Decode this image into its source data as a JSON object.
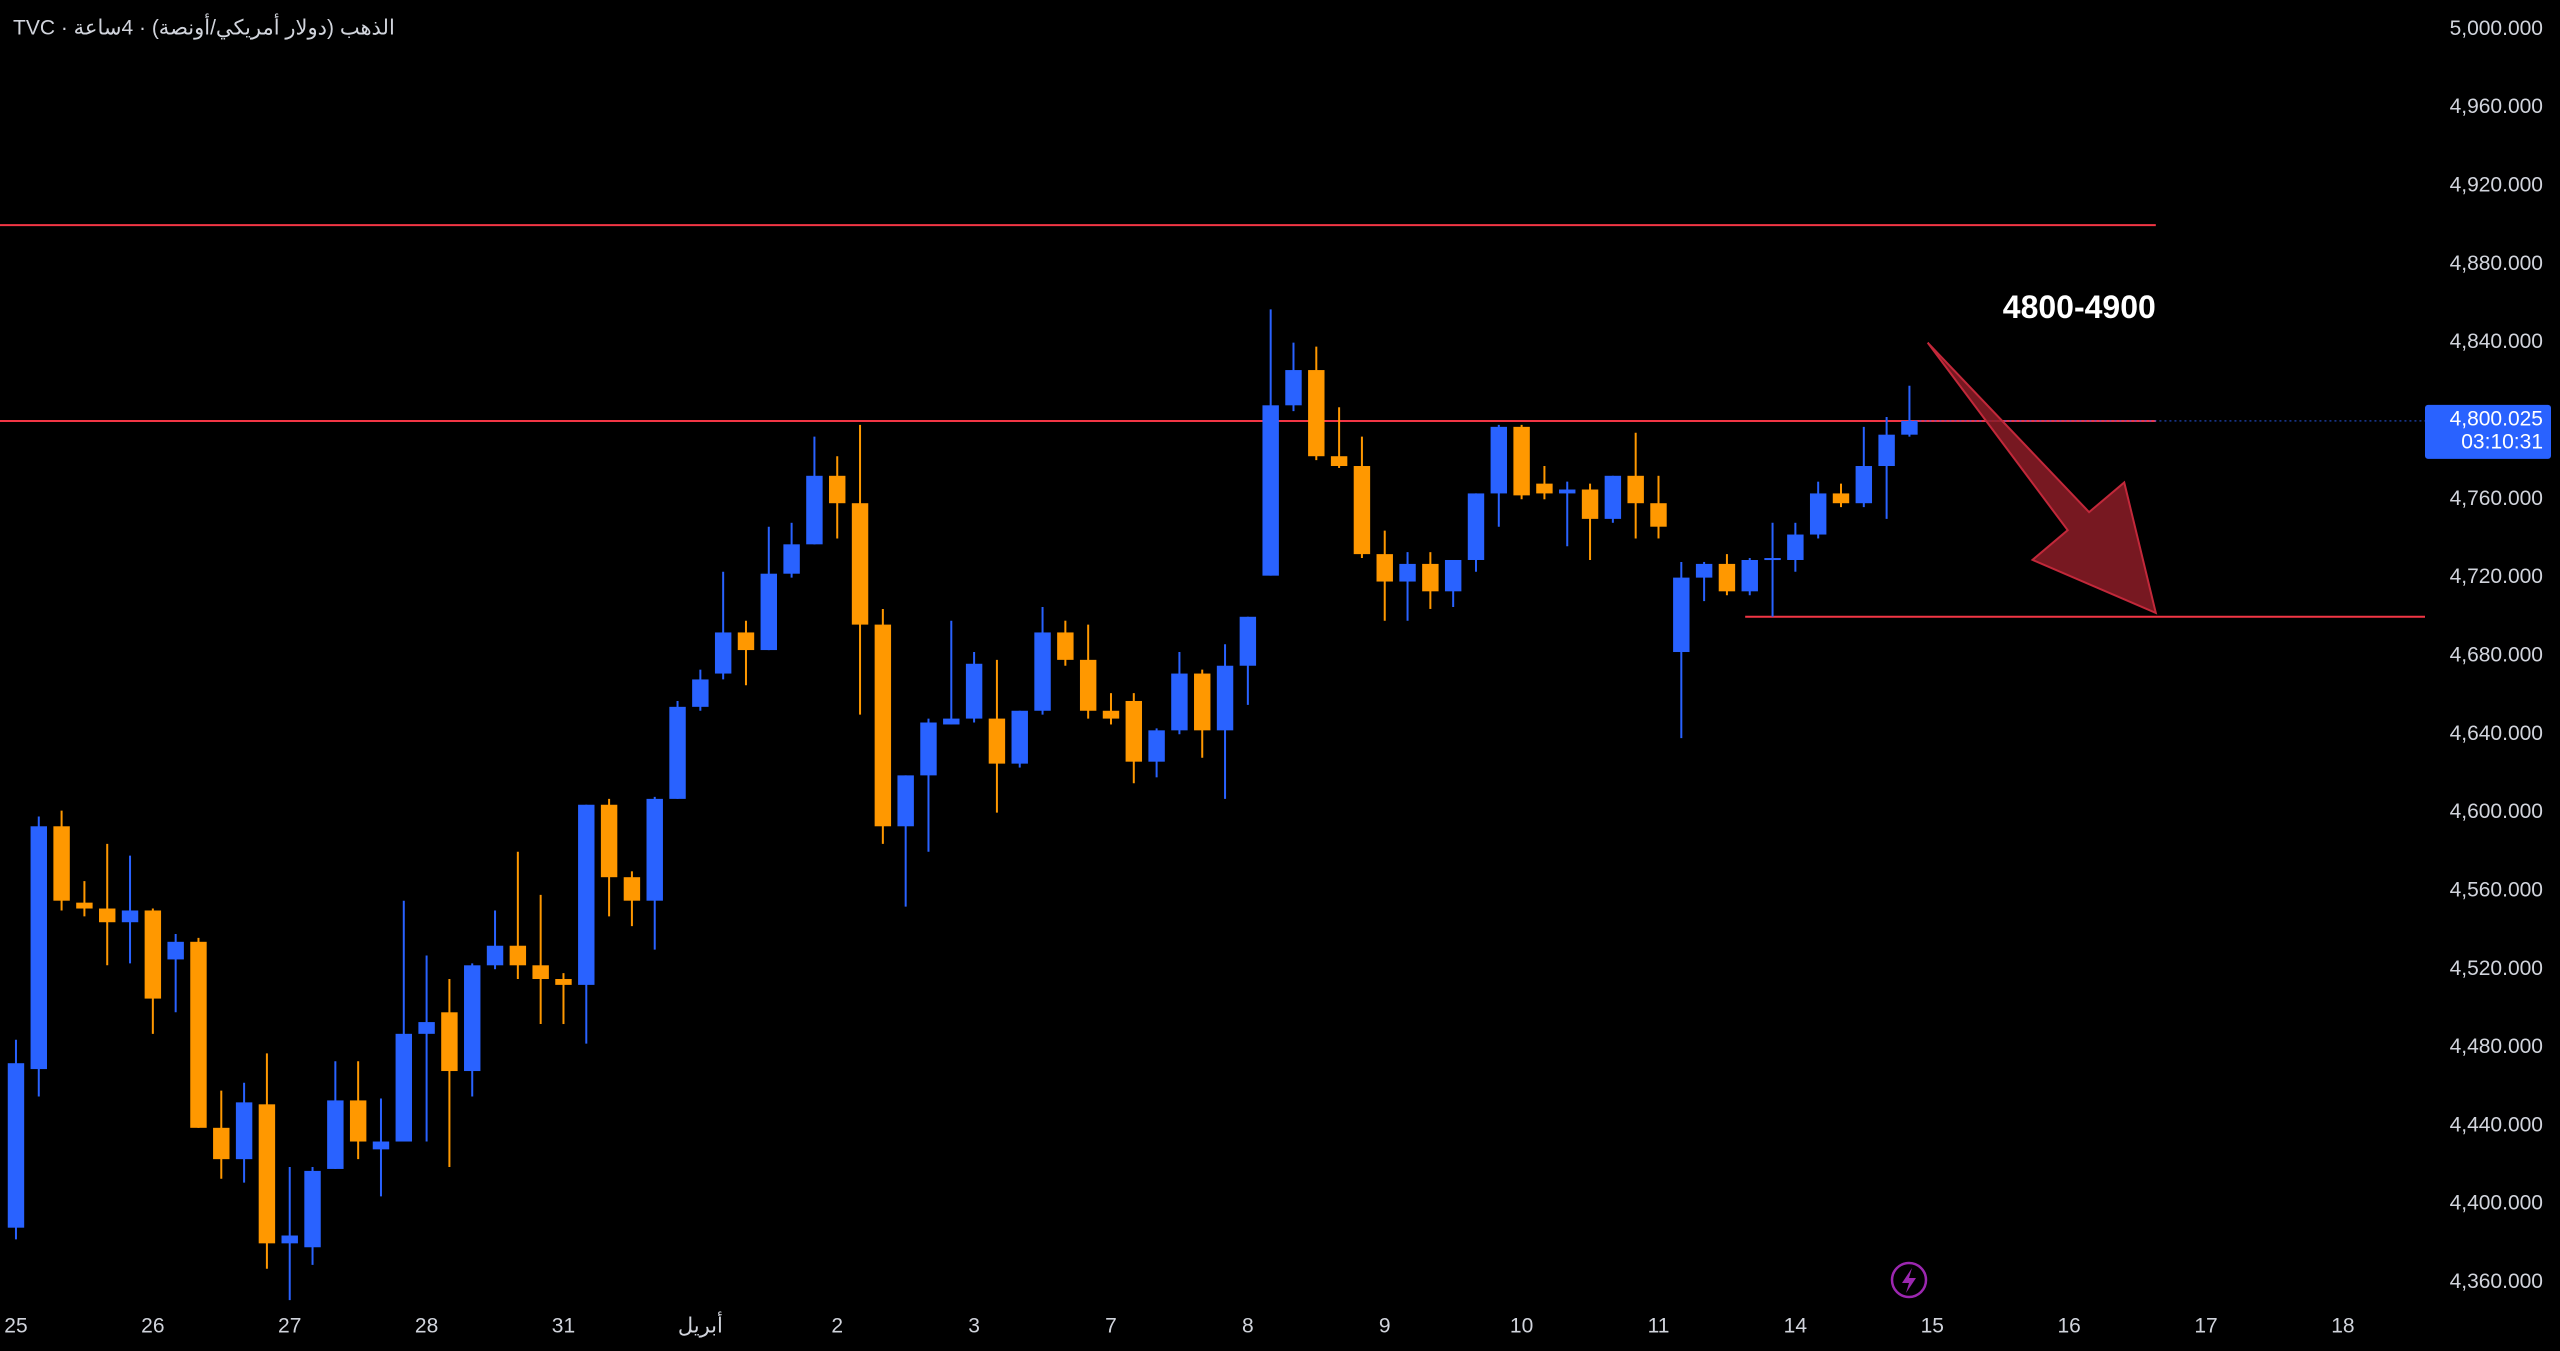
{
  "chart_data": {
    "type": "candlestick",
    "title": "TVC · الذهب (دولار أمريكي/أونصة) · 4ساعة",
    "x": [
      0,
      1,
      2,
      3,
      4,
      5,
      6,
      7,
      8,
      9,
      10,
      11,
      12,
      13,
      14,
      15,
      16,
      17,
      18,
      19,
      20,
      21,
      22,
      23,
      24,
      25,
      26,
      27,
      28,
      29,
      30,
      31,
      32,
      33,
      34,
      35,
      36,
      37,
      38,
      39,
      40,
      41,
      42,
      43,
      44,
      45,
      46,
      47,
      48,
      49,
      50,
      51,
      52,
      53,
      54,
      55,
      56,
      57,
      58,
      59,
      60,
      61,
      62,
      63,
      64,
      65,
      66,
      67,
      68,
      69,
      70,
      71,
      72,
      73,
      74,
      75,
      76,
      77,
      78,
      79,
      80,
      81,
      82,
      83
    ],
    "open": [
      4388,
      4469,
      4593,
      4554,
      4551,
      4544,
      4550,
      4525,
      4534,
      4439,
      4423,
      4451,
      4380,
      4378,
      4418,
      4453,
      4428,
      4432,
      4487,
      4498,
      4468,
      4522,
      4532,
      4522,
      4515,
      4512,
      4604,
      4567,
      4555,
      4607,
      4654,
      4671,
      4692,
      4683,
      4722,
      4737,
      4772,
      4758,
      4696,
      4593,
      4619,
      4645,
      4648,
      4648,
      4625,
      4652,
      4692,
      4678,
      4652,
      4657,
      4626,
      4642,
      4671,
      4642,
      4675,
      4721,
      4808,
      4826,
      4782,
      4777,
      4732,
      4718,
      4727,
      4713,
      4729,
      4763,
      4797,
      4768,
      4763,
      4765,
      4750,
      4772,
      4758,
      4682,
      4720,
      4727,
      4713,
      4729,
      4729,
      4742,
      4763,
      4758,
      4777,
      4793
    ],
    "high": [
      4484,
      4598,
      4601,
      4565,
      4584,
      4578,
      4551,
      4538,
      4536,
      4458,
      4462,
      4477,
      4419,
      4419,
      4473,
      4473,
      4454,
      4555,
      4527,
      4515,
      4523,
      4550,
      4580,
      4558,
      4518,
      4604,
      4607,
      4570,
      4608,
      4657,
      4673,
      4723,
      4698,
      4746,
      4748,
      4792,
      4782,
      4798,
      4704,
      4619,
      4648,
      4698,
      4682,
      4678,
      4652,
      4705,
      4698,
      4696,
      4661,
      4661,
      4643,
      4682,
      4673,
      4686,
      4700,
      4857,
      4840,
      4838,
      4807,
      4792,
      4744,
      4733,
      4733,
      4729,
      4763,
      4798,
      4798,
      4777,
      4769,
      4768,
      4772,
      4794,
      4772,
      4728,
      4728,
      4732,
      4730,
      4748,
      4748,
      4769,
      4768,
      4797,
      4802,
      4818
    ],
    "low": [
      4382,
      4455,
      4550,
      4547,
      4522,
      4523,
      4487,
      4498,
      4439,
      4413,
      4411,
      4367,
      4351,
      4369,
      4418,
      4423,
      4404,
      4432,
      4432,
      4419,
      4455,
      4520,
      4515,
      4492,
      4492,
      4482,
      4547,
      4542,
      4530,
      4607,
      4652,
      4668,
      4665,
      4683,
      4720,
      4737,
      4740,
      4650,
      4584,
      4552,
      4580,
      4645,
      4646,
      4600,
      4623,
      4650,
      4675,
      4648,
      4645,
      4615,
      4618,
      4640,
      4628,
      4607,
      4655,
      4721,
      4805,
      4780,
      4776,
      4730,
      4698,
      4698,
      4704,
      4705,
      4723,
      4746,
      4760,
      4760,
      4736,
      4729,
      4748,
      4740,
      4740,
      4638,
      4708,
      4711,
      4711,
      4700,
      4723,
      4740,
      4756,
      4756,
      4750,
      4792
    ],
    "close": [
      4472,
      4593,
      4555,
      4551,
      4544,
      4550,
      4505,
      4534,
      4439,
      4423,
      4452,
      4380,
      4384,
      4417,
      4453,
      4432,
      4432,
      4487,
      4493,
      4468,
      4522,
      4532,
      4522,
      4515,
      4512,
      4604,
      4567,
      4555,
      4607,
      4654,
      4668,
      4692,
      4683,
      4722,
      4737,
      4772,
      4758,
      4696,
      4593,
      4619,
      4646,
      4648,
      4676,
      4625,
      4652,
      4692,
      4678,
      4652,
      4648,
      4626,
      4642,
      4671,
      4642,
      4675,
      4700,
      4808,
      4826,
      4782,
      4777,
      4732,
      4718,
      4727,
      4713,
      4729,
      4763,
      4797,
      4762,
      4763,
      4765,
      4750,
      4772,
      4758,
      4746,
      4720,
      4727,
      4713,
      4729,
      4730,
      4742,
      4763,
      4758,
      4777,
      4793,
      4800.025
    ],
    "up_color": "#2962ff",
    "down_color": "#ff9800",
    "xlim": [
      -0.7,
      105.6
    ],
    "xticks": [
      {
        "value": 0,
        "label": "25"
      },
      {
        "value": 6,
        "label": "26"
      },
      {
        "value": 12,
        "label": "27"
      },
      {
        "value": 18,
        "label": "28"
      },
      {
        "value": 24,
        "label": "31"
      },
      {
        "value": 30,
        "label": "أبريل"
      },
      {
        "value": 36,
        "label": "2"
      },
      {
        "value": 42,
        "label": "3"
      },
      {
        "value": 48,
        "label": "7"
      },
      {
        "value": 54,
        "label": "8"
      },
      {
        "value": 60,
        "label": "9"
      },
      {
        "value": 66,
        "label": "10"
      },
      {
        "value": 72,
        "label": "11"
      },
      {
        "value": 78,
        "label": "14"
      },
      {
        "value": 84,
        "label": "15"
      },
      {
        "value": 90,
        "label": "16"
      },
      {
        "value": 96,
        "label": "17"
      },
      {
        "value": 102,
        "label": "18"
      }
    ],
    "ylim": [
      4348,
      5015
    ],
    "yticks": [
      {
        "value": 4360,
        "label": "4,360.000"
      },
      {
        "value": 4400,
        "label": "4,400.000"
      },
      {
        "value": 4440,
        "label": "4,440.000"
      },
      {
        "value": 4480,
        "label": "4,480.000"
      },
      {
        "value": 4520,
        "label": "4,520.000"
      },
      {
        "value": 4560,
        "label": "4,560.000"
      },
      {
        "value": 4600,
        "label": "4,600.000"
      },
      {
        "value": 4640,
        "label": "4,640.000"
      },
      {
        "value": 4680,
        "label": "4,680.000"
      },
      {
        "value": 4720,
        "label": "4,720.000"
      },
      {
        "value": 4760,
        "label": "4,760.000"
      },
      {
        "value": 4800,
        "label": "4,800.000"
      },
      {
        "value": 4840,
        "label": "4,840.000"
      },
      {
        "value": 4880,
        "label": "4,880.000"
      },
      {
        "value": 4920,
        "label": "4,920.000"
      },
      {
        "value": 4960,
        "label": "4,960.000"
      },
      {
        "value": 5000,
        "label": "5,000.000"
      }
    ],
    "last_price": {
      "value": 4800.025,
      "label": "4,800.025"
    },
    "countdown": "03:10:31",
    "levels": [
      {
        "y": 4900,
        "x": [
          -0.7,
          93.8
        ],
        "color": "#f23645"
      },
      {
        "y": 4800,
        "x": [
          -0.7,
          93.8
        ],
        "color": "#f23645"
      },
      {
        "y": 4700,
        "x": [
          75.8,
          105.6
        ],
        "color": "#f23645"
      }
    ],
    "annotation": {
      "text": "4800-4900",
      "x": 93.8,
      "y": 4857
    },
    "arrow": {
      "from": [
        83.8,
        4840
      ],
      "to": [
        93.8,
        4702
      ],
      "color": "#8c1c27"
    }
  }
}
